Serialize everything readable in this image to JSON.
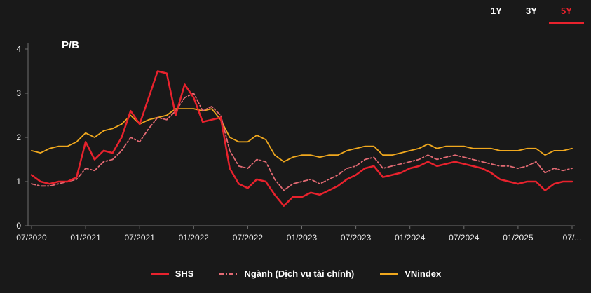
{
  "range_tabs": [
    {
      "label": "1Y",
      "active": false
    },
    {
      "label": "3Y",
      "active": false
    },
    {
      "label": "5Y",
      "active": true
    }
  ],
  "colors": {
    "background": "#191919",
    "accent_red": "#e8222d",
    "axis_gray": "#707070",
    "label_text": "#ececec"
  },
  "chart_data": {
    "type": "line",
    "title": "P/B",
    "ylim": [
      0,
      4
    ],
    "y_ticks": [
      0,
      1,
      2,
      3,
      4
    ],
    "grid": false,
    "legend_position": "bottom",
    "x_tick_labels": [
      "07/2020",
      "01/2021",
      "07/2021",
      "01/2022",
      "07/2022",
      "01/2023",
      "07/2023",
      "01/2024",
      "07/2024",
      "01/2025",
      "07/..."
    ],
    "categories": [
      "07/2020",
      "08/2020",
      "09/2020",
      "10/2020",
      "11/2020",
      "12/2020",
      "01/2021",
      "02/2021",
      "03/2021",
      "04/2021",
      "05/2021",
      "06/2021",
      "07/2021",
      "08/2021",
      "09/2021",
      "10/2021",
      "11/2021",
      "12/2021",
      "01/2022",
      "02/2022",
      "03/2022",
      "04/2022",
      "05/2022",
      "06/2022",
      "07/2022",
      "08/2022",
      "09/2022",
      "10/2022",
      "11/2022",
      "12/2022",
      "01/2023",
      "02/2023",
      "03/2023",
      "04/2023",
      "05/2023",
      "06/2023",
      "07/2023",
      "08/2023",
      "09/2023",
      "10/2023",
      "11/2023",
      "12/2023",
      "01/2024",
      "02/2024",
      "03/2024",
      "04/2024",
      "05/2024",
      "06/2024",
      "07/2024",
      "08/2024",
      "09/2024",
      "10/2024",
      "11/2024",
      "12/2024",
      "01/2025",
      "02/2025",
      "03/2025",
      "04/2025",
      "05/2025",
      "06/2025",
      "07/2025"
    ],
    "series": [
      {
        "name": "SHS",
        "color": "#e8222d",
        "dash": "solid",
        "values": [
          1.15,
          1.0,
          0.95,
          1.0,
          1.0,
          1.1,
          1.9,
          1.5,
          1.7,
          1.65,
          2.0,
          2.6,
          2.3,
          2.9,
          3.5,
          3.45,
          2.5,
          3.2,
          2.9,
          2.35,
          2.4,
          2.45,
          1.3,
          0.95,
          0.85,
          1.05,
          1.0,
          0.7,
          0.45,
          0.65,
          0.65,
          0.75,
          0.7,
          0.8,
          0.9,
          1.05,
          1.15,
          1.3,
          1.35,
          1.1,
          1.15,
          1.2,
          1.3,
          1.35,
          1.45,
          1.35,
          1.4,
          1.45,
          1.4,
          1.35,
          1.3,
          1.2,
          1.05,
          1.0,
          0.95,
          1.0,
          1.0,
          0.8,
          0.95,
          1.0,
          1.0
        ]
      },
      {
        "name": "Ngành (Dịch vụ tài chính)",
        "color": "#e36a73",
        "dash": "dashed",
        "values": [
          0.95,
          0.9,
          0.9,
          0.95,
          1.0,
          1.05,
          1.3,
          1.25,
          1.45,
          1.5,
          1.7,
          2.0,
          1.9,
          2.2,
          2.45,
          2.4,
          2.6,
          2.9,
          3.0,
          2.6,
          2.7,
          2.5,
          1.7,
          1.35,
          1.3,
          1.5,
          1.45,
          1.05,
          0.8,
          0.95,
          1.0,
          1.05,
          0.95,
          1.05,
          1.15,
          1.3,
          1.35,
          1.5,
          1.55,
          1.3,
          1.35,
          1.4,
          1.45,
          1.5,
          1.6,
          1.5,
          1.55,
          1.6,
          1.55,
          1.5,
          1.45,
          1.4,
          1.35,
          1.35,
          1.3,
          1.35,
          1.45,
          1.2,
          1.3,
          1.25,
          1.3
        ]
      },
      {
        "name": "VNindex",
        "color": "#f0a81e",
        "dash": "solid",
        "values": [
          1.7,
          1.65,
          1.75,
          1.8,
          1.8,
          1.9,
          2.1,
          2.0,
          2.15,
          2.2,
          2.3,
          2.5,
          2.3,
          2.4,
          2.45,
          2.5,
          2.65,
          2.65,
          2.65,
          2.6,
          2.65,
          2.4,
          2.0,
          1.9,
          1.9,
          2.05,
          1.95,
          1.6,
          1.45,
          1.55,
          1.6,
          1.6,
          1.55,
          1.6,
          1.6,
          1.7,
          1.75,
          1.8,
          1.8,
          1.6,
          1.6,
          1.65,
          1.7,
          1.75,
          1.85,
          1.75,
          1.8,
          1.8,
          1.8,
          1.75,
          1.75,
          1.75,
          1.7,
          1.7,
          1.7,
          1.75,
          1.75,
          1.6,
          1.7,
          1.7,
          1.75
        ]
      }
    ]
  }
}
